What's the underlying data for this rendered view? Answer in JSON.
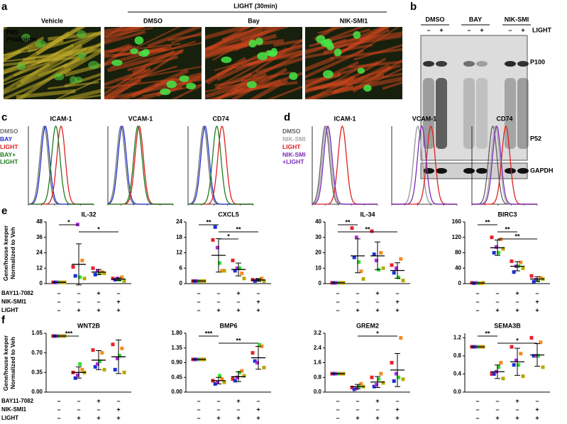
{
  "panel_labels": [
    "a",
    "b",
    "c",
    "d",
    "e",
    "f"
  ],
  "panel_a": {
    "group_label": "LIGHT (30min)",
    "columns": [
      "Vehicle",
      "DMSO",
      "Bay",
      "NIK-SMI1"
    ],
    "stain_labels": [
      {
        "text": "P65",
        "color": "#3fe03f"
      },
      {
        "text": "Phalloidin",
        "color": "#ff3030"
      }
    ]
  },
  "panel_b": {
    "groups": [
      "DMSO",
      "BAY",
      "NIK-SMI"
    ],
    "signs": [
      "–",
      "+",
      "–",
      "+",
      "–",
      "+"
    ],
    "row_label": "LIGHT",
    "bands": [
      "P100",
      "P52",
      "GAPDH"
    ]
  },
  "flow": [
    {
      "xlim": [
        0,
        5
      ],
      "ylim": [
        0,
        100
      ],
      "legend": [
        {
          "name": "DMSO",
          "color": "#707070"
        },
        {
          "name": "BAY",
          "color": "#2233cc"
        },
        {
          "name": "LIGHT",
          "color": "#e02020"
        },
        {
          "name": "BAY+\nLIGHT",
          "color": "#1f7a1f"
        }
      ],
      "plots": [
        {
          "title": "ICAM-1",
          "peaks": [
            1.2,
            1.3,
            2.5,
            2.1
          ]
        },
        {
          "title": "VCAM-1",
          "peaks": [
            1.0,
            1.1,
            2.4,
            2.3
          ]
        },
        {
          "title": "CD74",
          "peaks": [
            1.2,
            1.3,
            2.6,
            2.2
          ]
        }
      ]
    },
    {
      "xlim": [
        0,
        5
      ],
      "ylim": [
        0,
        100
      ],
      "legend": [
        {
          "name": "DMSO",
          "color": "#606060"
        },
        {
          "name": "NIK-SMI",
          "color": "#a8a8a8"
        },
        {
          "name": "LIGHT",
          "color": "#e02020"
        },
        {
          "name": "NIK-SMI\n+LIGHT",
          "color": "#7a2ab8"
        }
      ],
      "plots": [
        {
          "title": "ICAM-1",
          "peaks": [
            1.0,
            1.1,
            2.3,
            1.2
          ]
        },
        {
          "title": "VCAM-1",
          "peaks": [
            2.0,
            2.0,
            3.0,
            2.3
          ]
        },
        {
          "title": "CD74",
          "peaks": [
            1.6,
            1.8,
            2.6,
            1.9
          ]
        }
      ]
    }
  ],
  "conditions": {
    "labels": [
      "BAY11-7082",
      "NIK-SMI1",
      "LIGHT"
    ],
    "signs": [
      [
        "–",
        "–",
        "+",
        "–"
      ],
      [
        "–",
        "–",
        "–",
        "+"
      ],
      [
        "–",
        "+",
        "+",
        "+"
      ]
    ]
  },
  "chart_data": [
    {
      "type": "scatter",
      "title": "IL-32",
      "ylabel": "Gene/house keeper\nNormalized to Veh",
      "ylim": [
        0,
        48
      ],
      "yticks": [
        0,
        12,
        24,
        36,
        48
      ],
      "series": [
        {
          "color": "#e8202a",
          "values": [
            1,
            13,
            12,
            4
          ]
        },
        {
          "color": "#1c2fd6",
          "values": [
            1,
            6,
            7,
            3
          ]
        },
        {
          "color": "#b02ee0",
          "values": [
            1,
            46,
            10,
            4
          ]
        },
        {
          "color": "#2fe02f",
          "values": [
            1,
            5,
            8,
            3
          ]
        },
        {
          "color": "#f68b1f",
          "values": [
            1,
            18,
            9,
            5
          ]
        },
        {
          "color": "#b8a800",
          "values": [
            1,
            4,
            8,
            2
          ]
        }
      ],
      "mean": [
        1,
        15,
        9,
        3.5
      ],
      "sd": [
        0,
        16,
        2,
        1
      ],
      "significance": [
        {
          "groups": [
            0,
            1
          ],
          "label": "*"
        },
        {
          "groups": [
            1,
            3
          ],
          "label": "*"
        }
      ]
    },
    {
      "type": "scatter",
      "title": "CXCL5",
      "ylim": [
        0,
        24
      ],
      "yticks": [
        0,
        6,
        12,
        18,
        24
      ],
      "series": [
        {
          "color": "#e8202a",
          "values": [
            1,
            17,
            9,
            1.5
          ]
        },
        {
          "color": "#1c2fd6",
          "values": [
            1,
            22,
            5,
            1
          ]
        },
        {
          "color": "#b02ee0",
          "values": [
            1,
            14,
            6,
            1.5
          ]
        },
        {
          "color": "#2fe02f",
          "values": [
            1,
            8,
            6,
            1.5
          ]
        },
        {
          "color": "#f68b1f",
          "values": [
            1,
            5,
            4,
            2
          ]
        },
        {
          "color": "#b8a800",
          "values": [
            1,
            5,
            2,
            1
          ]
        }
      ],
      "mean": [
        1,
        11,
        5.5,
        1.4
      ],
      "sd": [
        0,
        6.5,
        2.5,
        0.5
      ],
      "significance": [
        {
          "groups": [
            0,
            1
          ],
          "label": "**"
        },
        {
          "groups": [
            1,
            3
          ],
          "label": "**"
        },
        {
          "groups": [
            1,
            2
          ],
          "label": "*"
        }
      ]
    },
    {
      "type": "scatter",
      "title": "IL-34",
      "ylim": [
        0,
        40
      ],
      "yticks": [
        0,
        10,
        20,
        30,
        40
      ],
      "series": [
        {
          "color": "#e8202a",
          "values": [
            0.5,
            36,
            34,
            12
          ]
        },
        {
          "color": "#1c2fd6",
          "values": [
            0.5,
            17,
            19,
            7
          ]
        },
        {
          "color": "#b02ee0",
          "values": [
            0.5,
            30,
            15,
            10
          ]
        },
        {
          "color": "#2fe02f",
          "values": [
            0.5,
            14,
            9,
            4
          ]
        },
        {
          "color": "#f68b1f",
          "values": [
            0.5,
            8,
            20,
            16
          ]
        },
        {
          "color": "#b8a800",
          "values": [
            0.5,
            3,
            10,
            2
          ]
        }
      ],
      "mean": [
        0.5,
        18,
        18,
        8.5
      ],
      "sd": [
        0,
        11,
        9,
        5
      ],
      "significance": [
        {
          "groups": [
            0,
            1
          ],
          "label": "**"
        },
        {
          "groups": [
            0,
            3
          ],
          "label": "**"
        }
      ]
    },
    {
      "type": "scatter",
      "title": "BIRC3",
      "ylim": [
        0,
        160
      ],
      "yticks": [
        0,
        40,
        80,
        120,
        160
      ],
      "series": [
        {
          "color": "#e8202a",
          "values": [
            2,
            120,
            58,
            20
          ]
        },
        {
          "color": "#1c2fd6",
          "values": [
            1,
            80,
            30,
            5
          ]
        },
        {
          "color": "#b02ee0",
          "values": [
            2,
            95,
            45,
            10
          ]
        },
        {
          "color": "#2fe02f",
          "values": [
            1,
            80,
            45,
            8
          ]
        },
        {
          "color": "#f68b1f",
          "values": [
            1,
            115,
            55,
            15
          ]
        },
        {
          "color": "#b8a800",
          "values": [
            2,
            90,
            40,
            12
          ]
        }
      ],
      "mean": [
        1.5,
        93,
        45,
        12
      ],
      "sd": [
        0,
        20,
        12,
        6
      ],
      "significance": [
        {
          "groups": [
            0,
            1
          ],
          "label": "**"
        },
        {
          "groups": [
            1,
            2
          ],
          "label": "**"
        },
        {
          "groups": [
            1,
            3
          ],
          "label": "**"
        }
      ]
    },
    {
      "type": "scatter",
      "title": "WNT2B",
      "ylabel": "Gene/house keeper\nNormalized to Veh",
      "ylim": [
        0,
        1.05
      ],
      "yticks": [
        {
          "value": 0,
          "label": "0.00"
        },
        {
          "value": 0.35,
          "label": "0.35"
        },
        {
          "value": 0.7,
          "label": "0.70"
        },
        {
          "value": 1.05,
          "label": "1.05"
        }
      ],
      "series": [
        {
          "color": "#e8202a",
          "values": [
            1,
            0.35,
            0.75,
            0.85
          ]
        },
        {
          "color": "#1c2fd6",
          "values": [
            1,
            0.25,
            0.45,
            0.4
          ]
        },
        {
          "color": "#b02ee0",
          "values": [
            1,
            0.3,
            0.5,
            0.6
          ]
        },
        {
          "color": "#2fe02f",
          "values": [
            1,
            0.5,
            0.55,
            0.65
          ]
        },
        {
          "color": "#f68b1f",
          "values": [
            1,
            0.4,
            0.7,
            0.78
          ]
        },
        {
          "color": "#b8a800",
          "values": [
            1,
            0.35,
            0.4,
            0.35
          ]
        }
      ],
      "mean": [
        1,
        0.35,
        0.57,
        0.63
      ],
      "sd": [
        0,
        0.1,
        0.17,
        0.3
      ],
      "significance": [
        {
          "groups": [
            0,
            1
          ],
          "label": "***"
        }
      ]
    },
    {
      "type": "scatter",
      "title": "BMP6",
      "ylim": [
        0,
        1.8
      ],
      "yticks": [
        {
          "value": 0,
          "label": "0.00"
        },
        {
          "value": 0.45,
          "label": "0.45"
        },
        {
          "value": 0.9,
          "label": "0.90"
        },
        {
          "value": 1.35,
          "label": "1.35"
        },
        {
          "value": 1.8,
          "label": "1.80"
        }
      ],
      "series": [
        {
          "color": "#e8202a",
          "values": [
            1,
            0.35,
            0.4,
            1.2
          ]
        },
        {
          "color": "#1c2fd6",
          "values": [
            1,
            0.25,
            0.35,
            0.95
          ]
        },
        {
          "color": "#b02ee0",
          "values": [
            1,
            0.3,
            0.45,
            0.9
          ]
        },
        {
          "color": "#2fe02f",
          "values": [
            1,
            0.5,
            0.6,
            1.45
          ]
        },
        {
          "color": "#f68b1f",
          "values": [
            1,
            0.4,
            0.65,
            1.4
          ]
        },
        {
          "color": "#b8a800",
          "values": [
            1,
            0.3,
            0.5,
            0.75
          ]
        }
      ],
      "mean": [
        1,
        0.35,
        0.47,
        1.05
      ],
      "sd": [
        0,
        0.1,
        0.15,
        0.35
      ],
      "significance": [
        {
          "groups": [
            0,
            1
          ],
          "label": "***"
        },
        {
          "groups": [
            1,
            3
          ],
          "label": "**"
        }
      ]
    },
    {
      "type": "scatter",
      "title": "GREM2",
      "ylim": [
        0,
        3.2
      ],
      "yticks": [
        {
          "value": 0,
          "label": "0.0"
        },
        {
          "value": 0.8,
          "label": "0.8"
        },
        {
          "value": 1.6,
          "label": "1.6"
        },
        {
          "value": 2.4,
          "label": "2.4"
        },
        {
          "value": 3.2,
          "label": "3.2"
        }
      ],
      "series": [
        {
          "color": "#e8202a",
          "values": [
            1,
            0.25,
            0.8,
            1.6
          ]
        },
        {
          "color": "#1c2fd6",
          "values": [
            1,
            0.15,
            0.3,
            0.6
          ]
        },
        {
          "color": "#b02ee0",
          "values": [
            1,
            0.2,
            0.4,
            1.0
          ]
        },
        {
          "color": "#2fe02f",
          "values": [
            1,
            0.3,
            0.7,
            0.8
          ]
        },
        {
          "color": "#f68b1f",
          "values": [
            1,
            0.45,
            1.0,
            2.95
          ]
        },
        {
          "color": "#b8a800",
          "values": [
            1,
            0.3,
            0.5,
            0.7
          ]
        }
      ],
      "mean": [
        1,
        0.3,
        0.55,
        1.2
      ],
      "sd": [
        0,
        0.12,
        0.3,
        0.9
      ],
      "significance": [
        {
          "groups": [
            1,
            3
          ],
          "label": "*"
        }
      ]
    },
    {
      "type": "scatter",
      "title": "SEMA3B",
      "ylim": [
        0,
        1.3
      ],
      "yticks": [
        {
          "value": 0,
          "label": "0.0"
        },
        {
          "value": 0.4,
          "label": "0.4"
        },
        {
          "value": 0.8,
          "label": "0.8"
        },
        {
          "value": 1.2,
          "label": "1.2"
        }
      ],
      "series": [
        {
          "color": "#e8202a",
          "values": [
            1,
            0.4,
            1.0,
            1.2
          ]
        },
        {
          "color": "#1c2fd6",
          "values": [
            1,
            0.4,
            0.6,
            0.8
          ]
        },
        {
          "color": "#b02ee0",
          "values": [
            1,
            0.45,
            0.7,
            0.8
          ]
        },
        {
          "color": "#2fe02f",
          "values": [
            1,
            0.55,
            0.6,
            0.8
          ]
        },
        {
          "color": "#f68b1f",
          "values": [
            1,
            0.65,
            0.85,
            1.1
          ]
        },
        {
          "color": "#b8a800",
          "values": [
            1,
            0.3,
            0.35,
            0.55
          ]
        }
      ],
      "mean": [
        1,
        0.45,
        0.67,
        0.82
      ],
      "sd": [
        0,
        0.15,
        0.3,
        0.25
      ],
      "significance": [
        {
          "groups": [
            0,
            1
          ],
          "label": "**"
        },
        {
          "groups": [
            1,
            3
          ],
          "label": "*"
        }
      ]
    }
  ]
}
